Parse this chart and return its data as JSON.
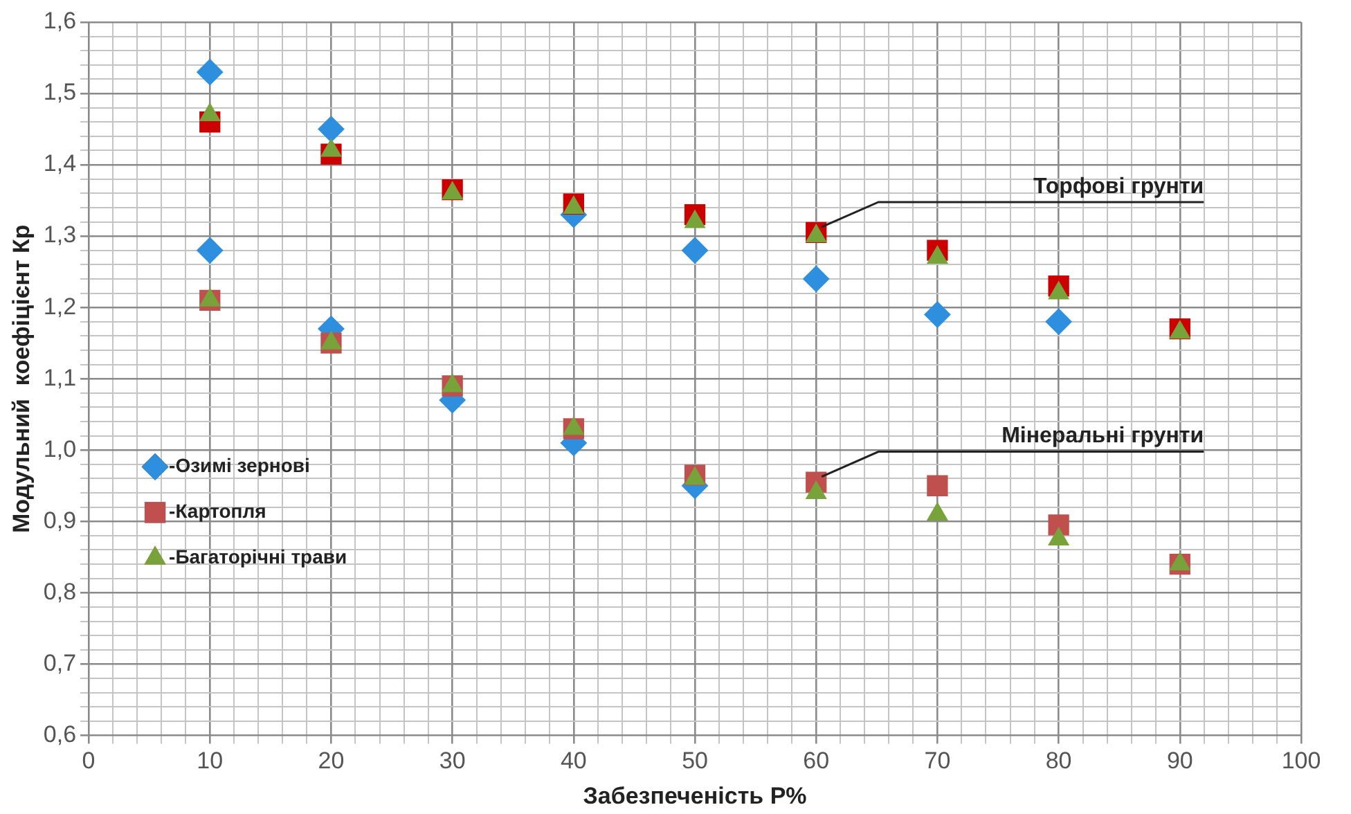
{
  "chart_data": {
    "type": "scatter",
    "xlabel": "Забезпеченість Р%",
    "ylabel": "Модульний  коефіцієнт Кр",
    "x": [
      10,
      20,
      30,
      40,
      50,
      60,
      70,
      80,
      90,
      10,
      20,
      30,
      40,
      50,
      60,
      70,
      80,
      90
    ],
    "series": [
      {
        "name": "-Озимі зернові",
        "marker": "diamond",
        "color": "#2f8fdf",
        "values": [
          1.53,
          1.45,
          null,
          1.33,
          1.28,
          1.24,
          1.19,
          1.18,
          null,
          1.28,
          1.17,
          1.07,
          1.01,
          0.95,
          null,
          null,
          null,
          null
        ]
      },
      {
        "name": "-Картопля",
        "marker": "square",
        "color": "#c0504d",
        "colors": [
          "#cc0000",
          "#cc0000",
          "#cc0000",
          "#cc0000",
          "#cc0000",
          "#cc0000",
          "#cc0000",
          "#cc0000",
          "#cc0000",
          "#c0504d",
          "#c0504d",
          "#c0504d",
          "#c0504d",
          "#c0504d",
          "#c0504d",
          "#c0504d",
          "#c0504d",
          "#c0504d"
        ],
        "values": [
          1.46,
          1.415,
          1.365,
          1.345,
          1.33,
          1.305,
          1.28,
          1.23,
          1.17,
          1.21,
          1.15,
          1.09,
          1.03,
          0.965,
          0.955,
          0.95,
          0.895,
          0.84
        ]
      },
      {
        "name": "-Багаторічні трави",
        "marker": "triangle",
        "color": "#77a33a",
        "values": [
          1.47,
          1.42,
          1.36,
          1.34,
          1.32,
          1.3,
          1.27,
          1.22,
          1.165,
          1.21,
          1.15,
          1.09,
          1.03,
          0.96,
          0.94,
          0.91,
          0.875,
          0.84
        ]
      }
    ],
    "annotations": [
      {
        "text": "Торфові грунти",
        "x": 60,
        "y": 1.305
      },
      {
        "text": "Мінеральні грунти",
        "x": 60,
        "y": 0.955
      }
    ],
    "xlim": [
      0,
      100
    ],
    "xticks": [
      0,
      {
        "value": 2,
        "label": null
      },
      {
        "value": 4,
        "label": null
      },
      {
        "value": 6,
        "label": null
      },
      {
        "value": 8,
        "label": null
      },
      10,
      {
        "value": 12,
        "label": null
      },
      {
        "value": 14,
        "label": null
      },
      {
        "value": 16,
        "label": null
      },
      {
        "value": 18,
        "label": null
      },
      20,
      {
        "value": 22,
        "label": null
      },
      {
        "value": 24,
        "label": null
      },
      {
        "value": 26,
        "label": null
      },
      {
        "value": 28,
        "label": null
      },
      30,
      {
        "value": 32,
        "label": null
      },
      {
        "value": 34,
        "label": null
      },
      {
        "value": 36,
        "label": null
      },
      {
        "value": 38,
        "label": null
      },
      40,
      {
        "value": 42,
        "label": null
      },
      {
        "value": 44,
        "label": null
      },
      {
        "value": 46,
        "label": null
      },
      {
        "value": 48,
        "label": null
      },
      50,
      {
        "value": 52,
        "label": null
      },
      {
        "value": 54,
        "label": null
      },
      {
        "value": 56,
        "label": null
      },
      {
        "value": 58,
        "label": null
      },
      60,
      {
        "value": 62,
        "label": null
      },
      {
        "value": 64,
        "label": null
      },
      {
        "value": 66,
        "label": null
      },
      {
        "value": 68,
        "label": null
      },
      70,
      {
        "value": 72,
        "label": null
      },
      {
        "value": 74,
        "label": null
      },
      {
        "value": 76,
        "label": null
      },
      {
        "value": 78,
        "label": null
      },
      80,
      {
        "value": 82,
        "label": null
      },
      {
        "value": 84,
        "label": null
      },
      {
        "value": 86,
        "label": null
      },
      {
        "value": 88,
        "label": null
      },
      90,
      {
        "value": 92,
        "label": null
      },
      {
        "value": 94,
        "label": null
      },
      {
        "value": 96,
        "label": null
      },
      {
        "value": 98,
        "label": null
      },
      100
    ],
    "ylim": [
      0.6,
      1.6
    ],
    "yticks": [
      {
        "value": 0.6,
        "label": "0,6"
      },
      {
        "value": 0.62,
        "label": null
      },
      {
        "value": 0.64,
        "label": null
      },
      {
        "value": 0.66,
        "label": null
      },
      {
        "value": 0.68,
        "label": null
      },
      {
        "value": 0.7,
        "label": "0,7"
      },
      {
        "value": 0.72,
        "label": null
      },
      {
        "value": 0.74,
        "label": null
      },
      {
        "value": 0.76,
        "label": null
      },
      {
        "value": 0.78,
        "label": null
      },
      {
        "value": 0.8,
        "label": "0,8"
      },
      {
        "value": 0.82,
        "label": null
      },
      {
        "value": 0.84,
        "label": null
      },
      {
        "value": 0.86,
        "label": null
      },
      {
        "value": 0.88,
        "label": null
      },
      {
        "value": 0.9,
        "label": "0,9"
      },
      {
        "value": 0.92,
        "label": null
      },
      {
        "value": 0.94,
        "label": null
      },
      {
        "value": 0.96,
        "label": null
      },
      {
        "value": 0.98,
        "label": null
      },
      {
        "value": 1.0,
        "label": "1,0"
      },
      {
        "value": 1.02,
        "label": null
      },
      {
        "value": 1.04,
        "label": null
      },
      {
        "value": 1.06,
        "label": null
      },
      {
        "value": 1.08,
        "label": null
      },
      {
        "value": 1.1,
        "label": "1,1"
      },
      {
        "value": 1.12,
        "label": null
      },
      {
        "value": 1.14,
        "label": null
      },
      {
        "value": 1.16,
        "label": null
      },
      {
        "value": 1.18,
        "label": null
      },
      {
        "value": 1.2,
        "label": "1,2"
      },
      {
        "value": 1.22,
        "label": null
      },
      {
        "value": 1.24,
        "label": null
      },
      {
        "value": 1.26,
        "label": null
      },
      {
        "value": 1.28,
        "label": null
      },
      {
        "value": 1.3,
        "label": "1,3"
      },
      {
        "value": 1.32,
        "label": null
      },
      {
        "value": 1.34,
        "label": null
      },
      {
        "value": 1.36,
        "label": null
      },
      {
        "value": 1.38,
        "label": null
      },
      {
        "value": 1.4,
        "label": "1,4"
      },
      {
        "value": 1.42,
        "label": null
      },
      {
        "value": 1.44,
        "label": null
      },
      {
        "value": 1.46,
        "label": null
      },
      {
        "value": 1.48,
        "label": null
      },
      {
        "value": 1.5,
        "label": "1,5"
      },
      {
        "value": 1.52,
        "label": null
      },
      {
        "value": 1.54,
        "label": null
      },
      {
        "value": 1.56,
        "label": null
      },
      {
        "value": 1.58,
        "label": null
      },
      {
        "value": 1.6,
        "label": "1,6"
      }
    ],
    "grid": true,
    "legend": "bottom left"
  }
}
